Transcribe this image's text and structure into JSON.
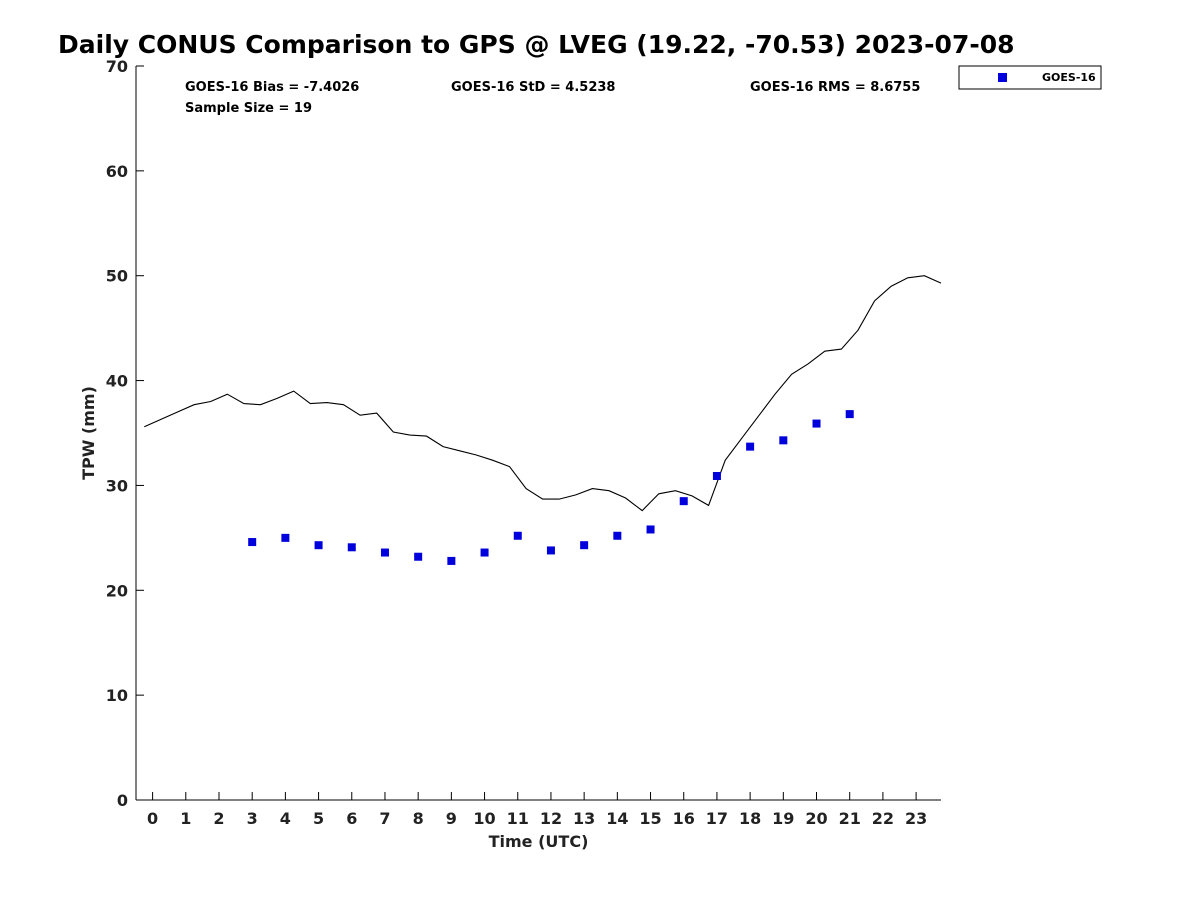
{
  "title": "Daily CONUS Comparison to GPS @ LVEG (19.22, -70.53) 2023-07-08",
  "stats": {
    "bias": "GOES-16 Bias = -7.4026",
    "std": "GOES-16 StD = 4.5238",
    "rms": "GOES-16 RMS = 8.6755",
    "sample": "Sample Size = 19"
  },
  "colors": {
    "goes": "#0000dd",
    "gps_line": "#000000",
    "axis": "#000000"
  },
  "chart_data": {
    "type": "scatter",
    "xlabel": "Time (UTC)",
    "ylabel": "TPW (mm)",
    "xlim": [
      -0.5,
      23.75
    ],
    "ylim": [
      0,
      70
    ],
    "x_ticks": [
      0,
      1,
      2,
      3,
      4,
      5,
      6,
      7,
      8,
      9,
      10,
      11,
      12,
      13,
      14,
      15,
      16,
      17,
      18,
      19,
      20,
      21,
      22,
      23
    ],
    "y_ticks": [
      0,
      10,
      20,
      30,
      40,
      50,
      60,
      70
    ],
    "legend": {
      "position": "top-right",
      "entries": [
        "GOES-16"
      ]
    },
    "series": [
      {
        "name": "GOES-16",
        "marker": "square",
        "x": [
          3,
          4,
          5,
          6,
          7,
          8,
          9,
          10,
          11,
          12,
          13,
          14,
          15,
          16,
          17,
          18,
          19,
          20,
          21
        ],
        "y": [
          24.6,
          25.0,
          24.3,
          24.1,
          23.6,
          23.2,
          22.8,
          23.6,
          25.2,
          23.8,
          24.3,
          25.2,
          25.8,
          28.5,
          30.9,
          33.7,
          34.3,
          35.9,
          36.8
        ]
      },
      {
        "marker": "line",
        "x": [
          -0.25,
          0.25,
          0.75,
          1.25,
          1.75,
          2.25,
          2.75,
          3.25,
          3.75,
          4.25,
          4.75,
          5.25,
          5.75,
          6.25,
          6.75,
          7.25,
          7.75,
          8.25,
          8.75,
          9.25,
          9.75,
          10.25,
          10.75,
          11.25,
          11.75,
          12.25,
          12.75,
          13.25,
          13.75,
          14.25,
          14.75,
          15.25,
          15.75,
          16.25,
          16.75,
          17.25,
          17.75,
          18.25,
          18.75,
          19.25,
          19.75,
          20.25,
          20.75,
          21.25,
          21.75,
          22.25,
          22.75,
          23.25,
          23.75
        ],
        "y": [
          35.6,
          36.3,
          37.0,
          37.7,
          38.0,
          38.7,
          37.8,
          37.7,
          38.3,
          39.0,
          37.8,
          37.9,
          37.7,
          36.7,
          36.9,
          35.1,
          34.8,
          34.7,
          33.7,
          33.3,
          32.9,
          32.4,
          31.8,
          29.7,
          28.7,
          28.7,
          29.1,
          29.7,
          29.5,
          28.8,
          27.6,
          29.2,
          29.5,
          29.0,
          28.1,
          32.4,
          34.5,
          36.6,
          38.7,
          40.6,
          41.6,
          42.8,
          43.0,
          44.8,
          47.6,
          49.0,
          49.8,
          50.0,
          49.3
        ]
      }
    ]
  }
}
